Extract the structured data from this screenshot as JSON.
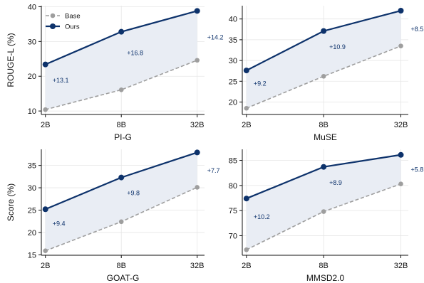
{
  "chart_data": {
    "type": "line",
    "categories": [
      "2B",
      "8B",
      "32B"
    ],
    "colors": {
      "base": "#9e9e9e",
      "ours": "#0d326b",
      "fill": "#e9edf4",
      "annot": "#0d326b"
    },
    "legend": {
      "placement": "top-left",
      "entries": [
        "Base",
        "Ours"
      ]
    },
    "grid": true,
    "panels": [
      {
        "xlabel": "PI-G",
        "ylabel": "ROUGE-L (%)",
        "ylim": [
          9,
          40.3
        ],
        "yticks": [
          10,
          20,
          30,
          40
        ],
        "series": [
          {
            "name": "Base",
            "values": [
              10.4,
              16.1,
              24.6
            ]
          },
          {
            "name": "Ours",
            "values": [
              23.4,
              32.8,
              38.8
            ]
          }
        ],
        "annotations": [
          "+13.1",
          "+16.8",
          "+14.2"
        ],
        "legend": true
      },
      {
        "xlabel": "MuSE",
        "ylabel": "",
        "ylim": [
          17,
          43.2
        ],
        "yticks": [
          20,
          25,
          30,
          35,
          40
        ],
        "series": [
          {
            "name": "Base",
            "values": [
              18.5,
              26.2,
              33.5
            ]
          },
          {
            "name": "Ours",
            "values": [
              27.6,
              37.1,
              42.0
            ]
          }
        ],
        "annotations": [
          "+9.2",
          "+10.9",
          "+8.5"
        ],
        "legend": false
      },
      {
        "xlabel": "GOAT-G",
        "ylabel": "Score (%)",
        "ylim": [
          14.9,
          38.6
        ],
        "yticks": [
          15,
          20,
          25,
          30,
          35
        ],
        "series": [
          {
            "name": "Base",
            "values": [
              15.9,
              22.4,
              30.1
            ]
          },
          {
            "name": "Ours",
            "values": [
              25.2,
              32.3,
              37.9
            ]
          }
        ],
        "annotations": [
          "+9.4",
          "+9.8",
          "+7.7"
        ],
        "legend": false
      },
      {
        "xlabel": "MMSD2.0",
        "ylabel": "",
        "ylim": [
          66.1,
          87.2
        ],
        "yticks": [
          70,
          75,
          80,
          85
        ],
        "series": [
          {
            "name": "Base",
            "values": [
              67.2,
              74.8,
              80.3
            ]
          },
          {
            "name": "Ours",
            "values": [
              77.4,
              83.7,
              86.1
            ]
          }
        ],
        "annotations": [
          "+10.2",
          "+8.9",
          "+5.8"
        ],
        "legend": false
      }
    ]
  }
}
